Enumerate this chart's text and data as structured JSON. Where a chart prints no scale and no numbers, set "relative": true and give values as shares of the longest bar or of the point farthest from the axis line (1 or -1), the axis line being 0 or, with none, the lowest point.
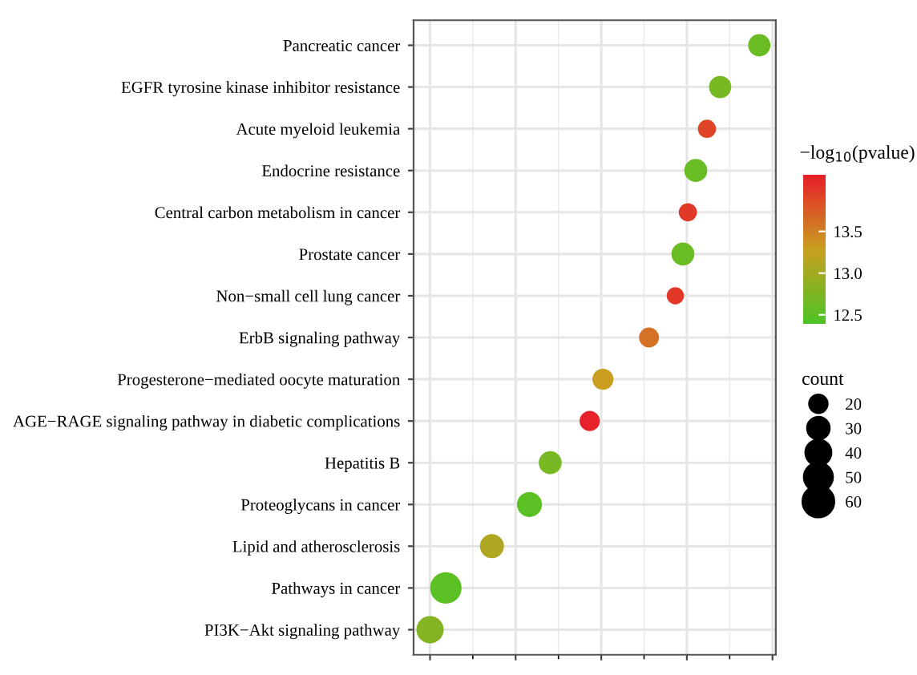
{
  "chart_data": {
    "type": "bubble",
    "orientation": "horizontal",
    "relative": true,
    "grid": true,
    "categories": [
      "Pancreatic cancer",
      "EGFR tyrosine kinase inhibitor resistance",
      "Acute myeloid leukemia",
      "Endocrine resistance",
      "Central carbon metabolism in cancer",
      "Prostate cancer",
      "Non−small cell lung cancer",
      "ErbB signaling pathway",
      "Progesterone−mediated oocyte maturation",
      "AGE−RAGE signaling pathway in diabetic complications",
      "Hepatitis B",
      "Proteoglycans in cancer",
      "Lipid and atherosclerosis",
      "Pathways in cancer",
      "PI3K−Akt signaling pathway"
    ],
    "values": [
      1,
      0.881,
      0.841,
      0.807,
      0.783,
      0.768,
      0.745,
      0.665,
      0.525,
      0.485,
      0.365,
      0.302,
      0.188,
      0.048,
      0
    ],
    "sizes": [
      30,
      30,
      20,
      32,
      20,
      32,
      18,
      24,
      27,
      25,
      32,
      38,
      35,
      60,
      45
    ],
    "size_legend": [
      20,
      30,
      40,
      50,
      60
    ],
    "legend_title": "count",
    "cvalues": [
      12.6,
      12.7,
      13.9,
      12.6,
      14.0,
      12.6,
      14.0,
      13.6,
      13.3,
      14.15,
      12.7,
      12.5,
      13.1,
      12.5,
      12.8
    ],
    "clabel": "−log$_{10}$(pvalue)",
    "clim": [
      12.39,
      14.17
    ],
    "cticks": [
      {
        "value": 12.5,
        "label": "12.5"
      },
      {
        "value": 13,
        "label": "13.0"
      },
      {
        "value": 13.5,
        "label": "13.5"
      }
    ]
  }
}
